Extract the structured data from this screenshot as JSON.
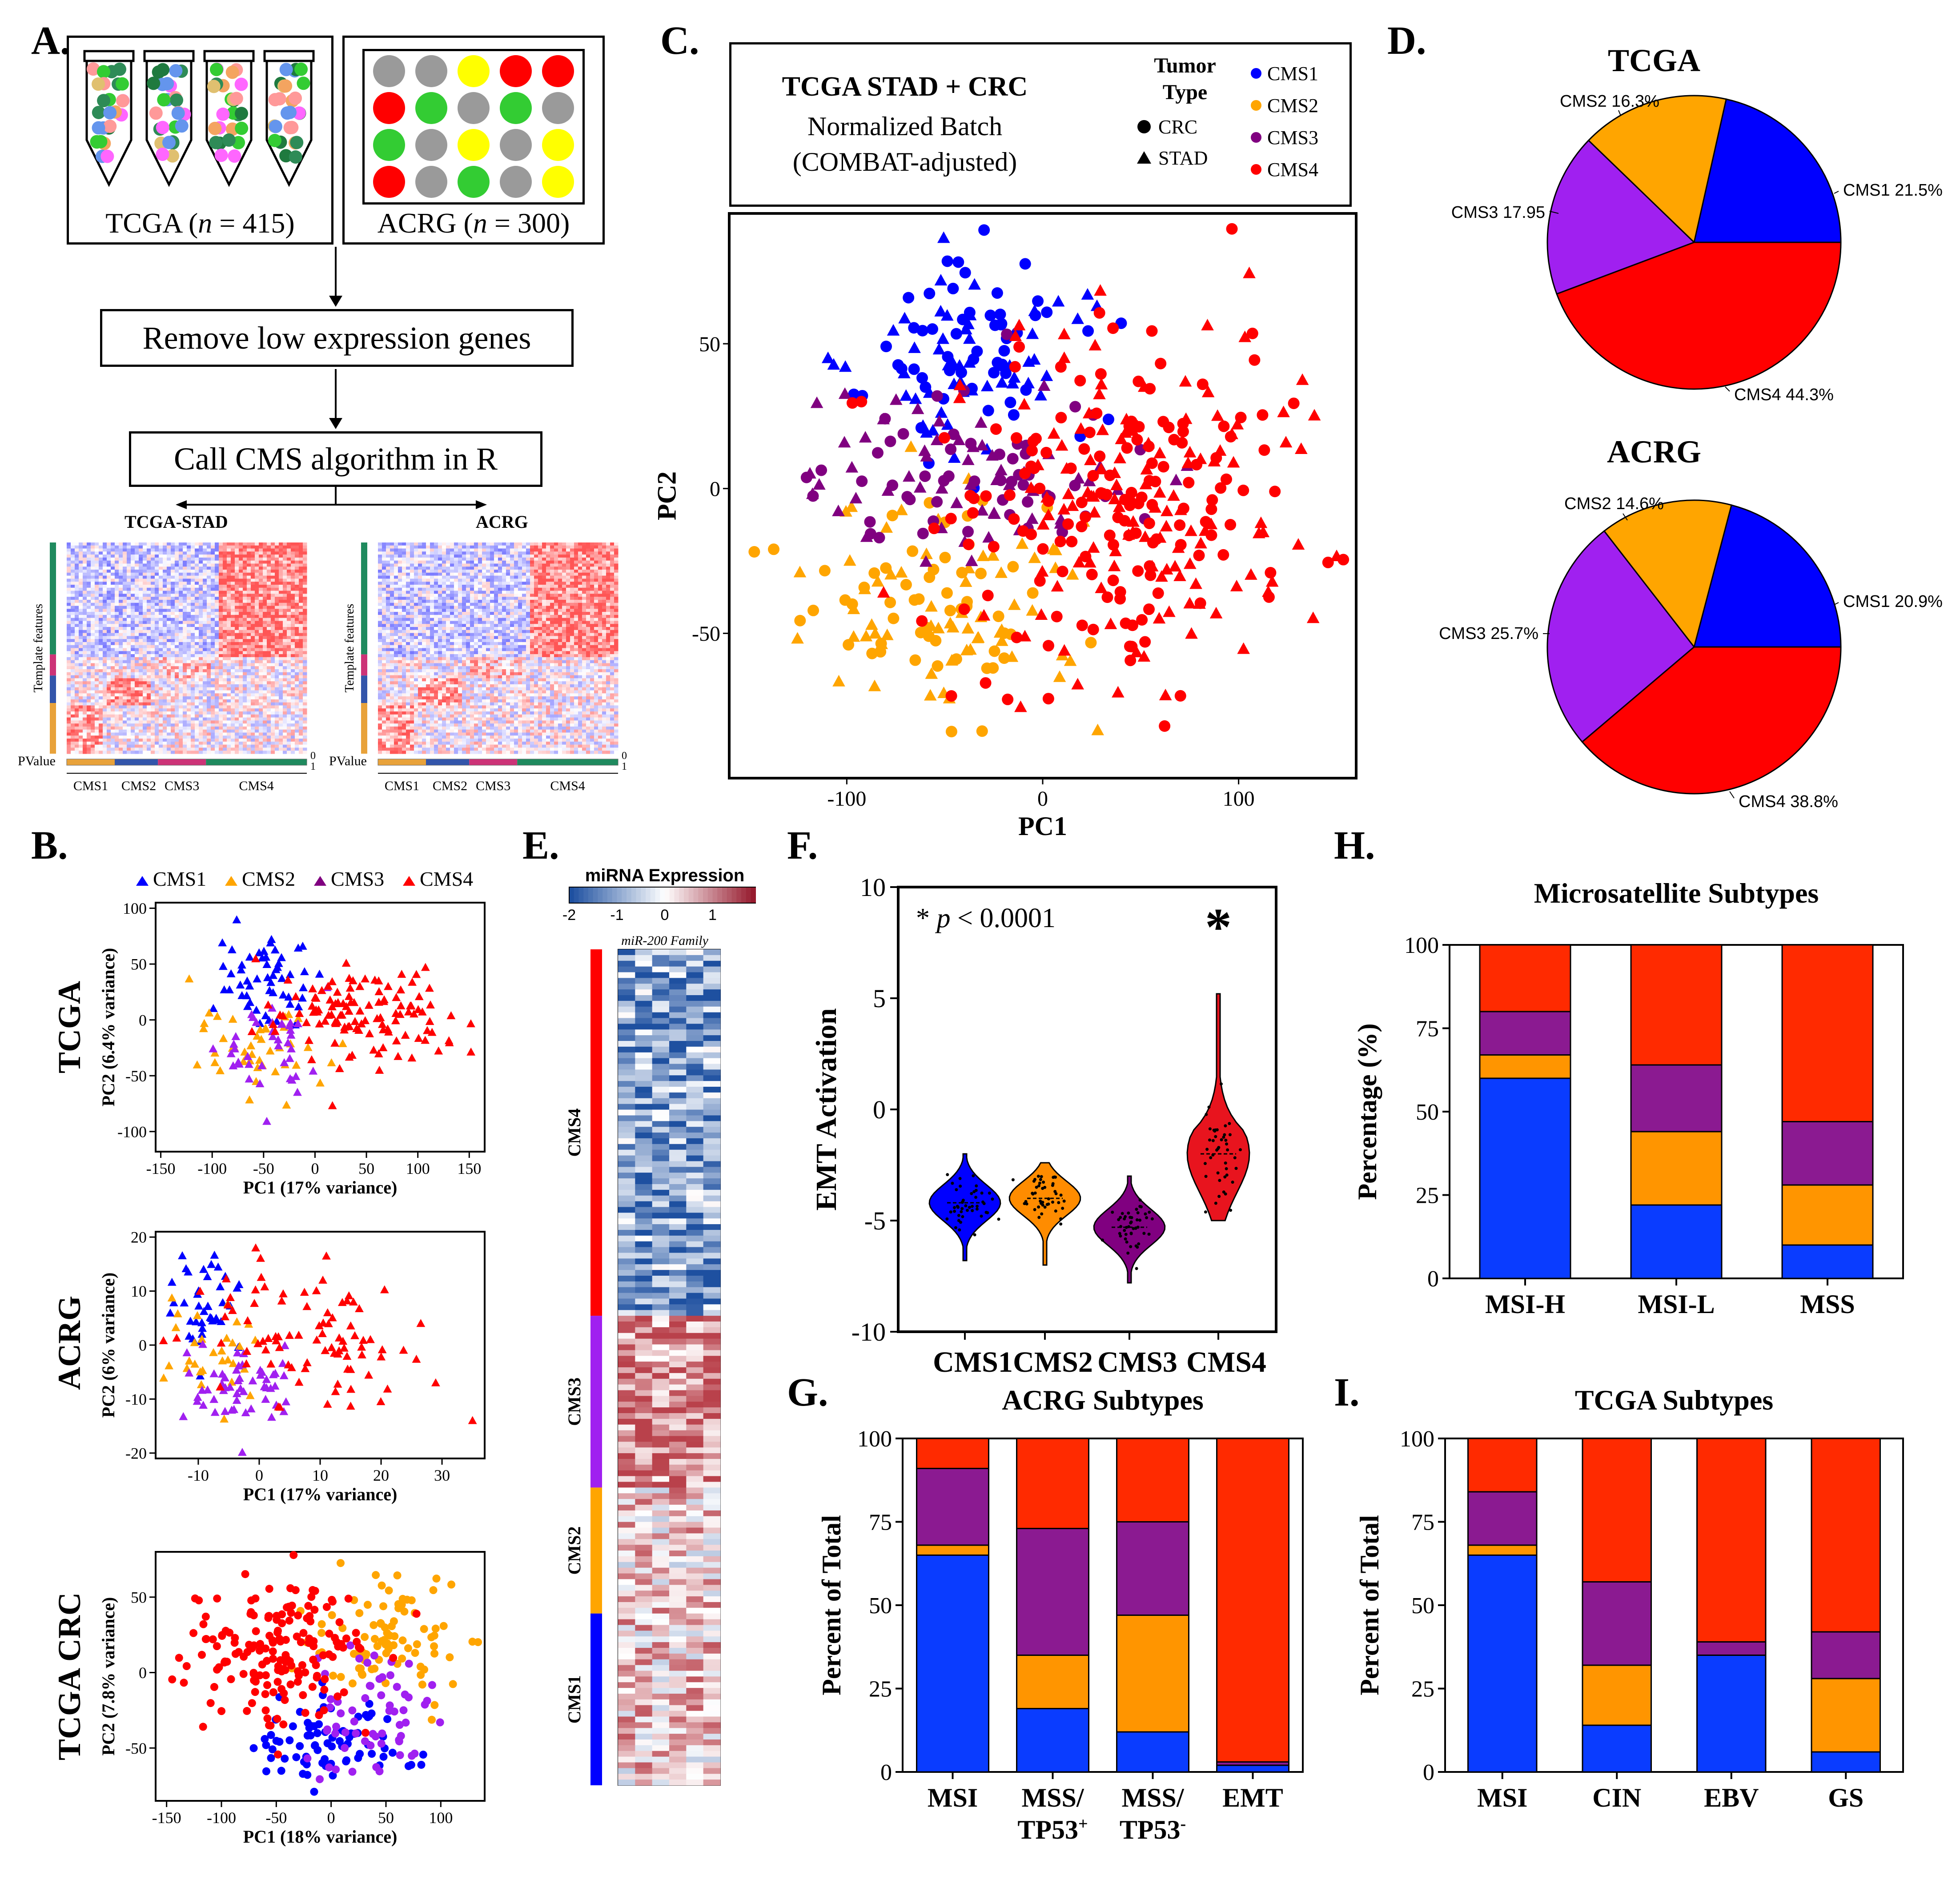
{
  "panels": {
    "A": "A.",
    "B": "B.",
    "C": "C.",
    "D": "D.",
    "E": "E.",
    "F": "F.",
    "G": "G.",
    "H": "H.",
    "I": "I."
  },
  "panelA": {
    "tcga_label": "TCGA (",
    "tcga_n": "n",
    "tcga_count": " = 415)",
    "acrg_label": "ACRG (",
    "acrg_n": "n",
    "acrg_count": " = 300)",
    "step1": "Remove low expression genes",
    "step2": "Call CMS algorithm in R",
    "heat1_title": "TCGA-STAD",
    "heat2_title": "ACRG",
    "y_axis": "Template features",
    "pvalue": "PValue",
    "scale_top": "0",
    "scale_bottom": "1",
    "cms_labels": [
      "CMS1",
      "CMS2",
      "CMS3",
      "CMS4"
    ],
    "plate_colors": [
      [
        "#9a9a9a",
        "#9a9a9a",
        "#ffff00",
        "#ff0000",
        "#ff0000"
      ],
      [
        "#ff0000",
        "#33cc33",
        "#9a9a9a",
        "#33cc33",
        "#9a9a9a"
      ],
      [
        "#33cc33",
        "#9a9a9a",
        "#ffff00",
        "#9a9a9a",
        "#ffff00"
      ],
      [
        "#ff0000",
        "#9a9a9a",
        "#33cc33",
        "#9a9a9a",
        "#ffff00"
      ]
    ]
  },
  "colors": {
    "CMS1": "#0000ff",
    "CMS2": "#ffa500",
    "CMS3": "#800080",
    "CMS4": "#ff0000",
    "CMS3_light": "#a020f0"
  },
  "chart_data": [
    {
      "id": "C",
      "type": "scatter",
      "title": "TCGA STAD + CRC",
      "subtitle1": "Normalized Batch",
      "subtitle2": "(COMBAT-adjusted)",
      "legend_title1": "Tumor",
      "legend_title2": "Type",
      "shape_legend": [
        "CRC",
        "STAD"
      ],
      "series_names": [
        "CMS1",
        "CMS2",
        "CMS3",
        "CMS4"
      ],
      "xlabel": "PC1",
      "ylabel": "PC2",
      "xlim": [
        -160,
        160
      ],
      "ylim": [
        -100,
        95
      ],
      "xticks": [
        -100,
        0,
        100
      ],
      "yticks": [
        50,
        0,
        -50
      ],
      "clusters": [
        {
          "series": "CMS1",
          "cx": -35,
          "cy": 45,
          "sx": 30,
          "sy": 18,
          "n": 110
        },
        {
          "series": "CMS2",
          "cx": -50,
          "cy": -40,
          "sx": 35,
          "sy": 18,
          "n": 120
        },
        {
          "series": "CMS3",
          "cx": -35,
          "cy": 5,
          "sx": 40,
          "sy": 15,
          "n": 110
        },
        {
          "series": "CMS4",
          "cx": 45,
          "cy": -5,
          "sx": 45,
          "sy": 30,
          "n": 280
        }
      ]
    },
    {
      "id": "D-TCGA",
      "type": "pie",
      "title": "TCGA",
      "labels": [
        "CMS1 21.5%",
        "CMS2 16.3%",
        "CMS3 17.95",
        "CMS4 44.3%"
      ],
      "values": [
        21.5,
        16.3,
        17.95,
        44.3
      ]
    },
    {
      "id": "D-ACRG",
      "type": "pie",
      "title": "ACRG",
      "labels": [
        "CMS1 20.9%",
        "CMS2 14.6%",
        "CMS3 25.7%",
        "CMS4 38.8%"
      ],
      "values": [
        20.9,
        14.6,
        25.7,
        38.8
      ]
    },
    {
      "id": "B-TCGA",
      "type": "scatter",
      "legend": [
        "CMS1",
        "CMS2",
        "CMS3",
        "CMS4"
      ],
      "title": "TCGA",
      "xlabel": "PC1 (17% variance)",
      "ylabel": "PC2 (6.4% variance)",
      "xlim": [
        -155,
        165
      ],
      "ylim": [
        -118,
        105
      ],
      "xticks": [
        -150,
        -100,
        -50,
        0,
        50,
        100,
        150
      ],
      "yticks": [
        100,
        50,
        0,
        -50,
        -100
      ],
      "clusters": [
        {
          "series": "CMS1",
          "cx": -55,
          "cy": 35,
          "sx": 22,
          "sy": 20,
          "n": 55
        },
        {
          "series": "CMS2",
          "cx": -60,
          "cy": -30,
          "sx": 30,
          "sy": 25,
          "n": 45
        },
        {
          "series": "CMS3",
          "cx": -40,
          "cy": -25,
          "sx": 25,
          "sy": 20,
          "n": 40
        },
        {
          "series": "CMS4",
          "cx": 50,
          "cy": 5,
          "sx": 45,
          "sy": 22,
          "n": 120
        }
      ]
    },
    {
      "id": "B-ACRG",
      "type": "scatter",
      "title": "ACRG",
      "xlabel": "PC1 (17% variance)",
      "ylabel": "PC2 (6% variance)",
      "xlim": [
        -17,
        37
      ],
      "ylim": [
        -21,
        21
      ],
      "xticks": [
        -10,
        0,
        10,
        20,
        30
      ],
      "yticks": [
        20,
        10,
        0,
        -10,
        -20
      ],
      "clusters": [
        {
          "series": "CMS1",
          "cx": -9,
          "cy": 8,
          "sx": 3,
          "sy": 5,
          "n": 40
        },
        {
          "series": "CMS2",
          "cx": -8,
          "cy": -2,
          "sx": 4,
          "sy": 5,
          "n": 30
        },
        {
          "series": "CMS3",
          "cx": -4,
          "cy": -8,
          "sx": 5,
          "sy": 4,
          "n": 55
        },
        {
          "series": "CMS4",
          "cx": 8,
          "cy": 3,
          "sx": 9,
          "sy": 7,
          "n": 90
        }
      ]
    },
    {
      "id": "B-CRC",
      "type": "scatter",
      "title": "TCGA CRC",
      "xlabel": "PC1 (18% variance)",
      "ylabel": "PC2 (7.8% variance)",
      "xlim": [
        -160,
        140
      ],
      "ylim": [
        -85,
        80
      ],
      "xticks": [
        -150,
        -100,
        -50,
        0,
        50,
        100
      ],
      "yticks": [
        50,
        0,
        -50
      ],
      "clusters": [
        {
          "series": "CMS1",
          "cx": 0,
          "cy": -48,
          "sx": 35,
          "sy": 15,
          "n": 80
        },
        {
          "series": "CMS2",
          "cx": 50,
          "cy": 20,
          "sx": 35,
          "sy": 20,
          "n": 90
        },
        {
          "series": "CMS3",
          "cx": 30,
          "cy": -30,
          "sx": 30,
          "sy": 20,
          "n": 60
        },
        {
          "series": "CMS4",
          "cx": -50,
          "cy": 15,
          "sx": 40,
          "sy": 25,
          "n": 170
        }
      ]
    },
    {
      "id": "E",
      "type": "heatmap",
      "title": "miRNA Expression",
      "scale_ticks": [
        "-2",
        "-1",
        "0",
        "1",
        "2"
      ],
      "subtitle": "miR-200 Family",
      "row_groups": [
        {
          "name": "CMS4",
          "rows": 64
        },
        {
          "name": "CMS3",
          "rows": 30
        },
        {
          "name": "CMS2",
          "rows": 22
        },
        {
          "name": "CMS1",
          "rows": 30
        }
      ],
      "columns": 6
    },
    {
      "id": "F",
      "type": "violin",
      "annotation": "* ",
      "annotation_p": "p",
      "annotation_rest": " < 0.0001",
      "star": "*",
      "ylabel": "EMT Activation",
      "ylim": [
        -10,
        10
      ],
      "yticks": [
        10,
        5,
        0,
        -5,
        -10
      ],
      "categories": [
        "CMS1",
        "CMS2",
        "CMS3",
        "CMS4"
      ],
      "medians": [
        -4.2,
        -4.0,
        -5.3,
        -2.0
      ],
      "ranges": [
        [
          -6.8,
          -2.0
        ],
        [
          -7.0,
          -2.4
        ],
        [
          -7.8,
          -3.0
        ],
        [
          -5.0,
          5.2
        ]
      ]
    },
    {
      "id": "G",
      "type": "bar",
      "stacked": true,
      "title": "ACRG Subtypes",
      "ylabel": "Percent of Total",
      "yticks": [
        0,
        25,
        50,
        75,
        100
      ],
      "categories": [
        "MSI",
        "MSS/",
        "MSS/",
        "EMT"
      ],
      "category_line2": [
        "",
        "TP53",
        "TP53",
        ""
      ],
      "category_sup": [
        "",
        "+",
        "-",
        ""
      ],
      "series": [
        {
          "name": "CMS1",
          "values": [
            65,
            19,
            12,
            2
          ]
        },
        {
          "name": "CMS2",
          "values": [
            3,
            16,
            35,
            0
          ]
        },
        {
          "name": "CMS3",
          "values": [
            23,
            38,
            28,
            1
          ]
        },
        {
          "name": "CMS4",
          "values": [
            9,
            27,
            25,
            97
          ]
        }
      ]
    },
    {
      "id": "H",
      "type": "bar",
      "stacked": true,
      "title": "Microsatellite Subtypes",
      "ylabel": "Percentage (%)",
      "yticks": [
        0,
        25,
        50,
        75,
        100
      ],
      "categories": [
        "MSI-H",
        "MSI-L",
        "MSS"
      ],
      "series": [
        {
          "name": "CMS1",
          "values": [
            60,
            22,
            10
          ]
        },
        {
          "name": "CMS2",
          "values": [
            7,
            22,
            18
          ]
        },
        {
          "name": "CMS3",
          "values": [
            13,
            20,
            19
          ]
        },
        {
          "name": "CMS4",
          "values": [
            20,
            36,
            53
          ]
        }
      ]
    },
    {
      "id": "I",
      "type": "bar",
      "stacked": true,
      "title": "TCGA Subtypes",
      "ylabel": "Percent of Total",
      "yticks": [
        0,
        25,
        50,
        75,
        100
      ],
      "categories": [
        "MSI",
        "CIN",
        "EBV",
        "GS"
      ],
      "series": [
        {
          "name": "CMS1",
          "values": [
            65,
            14,
            35,
            6
          ]
        },
        {
          "name": "CMS2",
          "values": [
            3,
            18,
            0,
            22
          ]
        },
        {
          "name": "CMS3",
          "values": [
            16,
            25,
            4,
            14
          ]
        },
        {
          "name": "CMS4",
          "values": [
            16,
            43,
            61,
            58
          ]
        }
      ]
    }
  ]
}
